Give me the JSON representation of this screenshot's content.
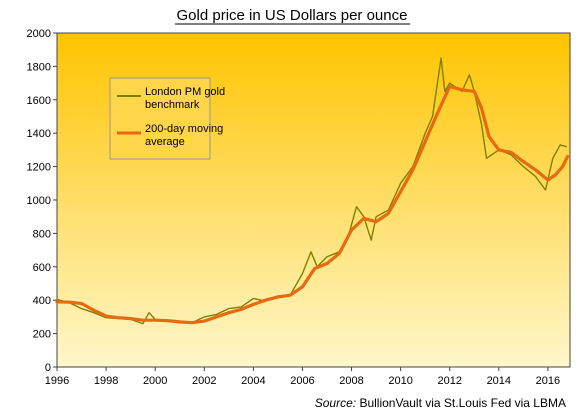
{
  "chart_data": {
    "type": "line",
    "title": "Gold price in US Dollars per ounce",
    "xlabel": "",
    "ylabel": "",
    "xlim": [
      1996,
      2016.9
    ],
    "ylim": [
      0,
      2000
    ],
    "x_ticks": [
      "1996",
      "1998",
      "2000",
      "2002",
      "2004",
      "2006",
      "2008",
      "2010",
      "2012",
      "2014",
      "2016"
    ],
    "y_ticks": [
      "0",
      "200",
      "400",
      "600",
      "800",
      "1000",
      "1200",
      "1400",
      "1600",
      "1800",
      "2000"
    ],
    "grid": false,
    "legend_position": "top-left",
    "source_label": "Source:",
    "source_text": "BullionVault via St.Louis Fed via LBMA",
    "background_gradient": [
      "#ffc400",
      "#fff7cc"
    ],
    "series": [
      {
        "name": "London PM gold benchmark",
        "color": "#808000",
        "x": [
          1996.0,
          1996.5,
          1997.0,
          1997.5,
          1998.0,
          1998.5,
          1999.0,
          1999.5,
          1999.75,
          2000.0,
          2000.5,
          2001.0,
          2001.5,
          2002.0,
          2002.5,
          2003.0,
          2003.5,
          2004.0,
          2004.5,
          2005.0,
          2005.5,
          2006.0,
          2006.35,
          2006.6,
          2007.0,
          2007.5,
          2007.9,
          2008.2,
          2008.5,
          2008.8,
          2009.0,
          2009.5,
          2010.0,
          2010.5,
          2011.0,
          2011.3,
          2011.65,
          2011.8,
          2012.0,
          2012.5,
          2012.8,
          2013.0,
          2013.3,
          2013.5,
          2014.0,
          2014.5,
          2015.0,
          2015.5,
          2015.9,
          2016.2,
          2016.5,
          2016.75
        ],
        "y": [
          405,
          385,
          350,
          325,
          295,
          290,
          285,
          260,
          325,
          285,
          275,
          265,
          265,
          300,
          315,
          350,
          360,
          410,
          395,
          425,
          430,
          560,
          690,
          600,
          660,
          690,
          800,
          960,
          900,
          760,
          900,
          940,
          1100,
          1200,
          1400,
          1500,
          1850,
          1650,
          1700,
          1650,
          1750,
          1650,
          1450,
          1250,
          1300,
          1270,
          1200,
          1140,
          1060,
          1250,
          1330,
          1320
        ]
      },
      {
        "name": "200-day moving average",
        "color": "#e86a10",
        "x": [
          1996.0,
          1996.5,
          1997.0,
          1997.5,
          1998.0,
          1998.5,
          1999.0,
          1999.5,
          2000.0,
          2000.5,
          2001.0,
          2001.5,
          2002.0,
          2002.5,
          2003.0,
          2003.5,
          2004.0,
          2004.5,
          2005.0,
          2005.5,
          2006.0,
          2006.5,
          2007.0,
          2007.5,
          2008.0,
          2008.5,
          2009.0,
          2009.5,
          2010.0,
          2010.5,
          2011.0,
          2011.5,
          2012.0,
          2012.5,
          2013.0,
          2013.3,
          2013.6,
          2014.0,
          2014.5,
          2015.0,
          2015.5,
          2016.0,
          2016.3,
          2016.6,
          2016.8
        ],
        "y": [
          390,
          388,
          380,
          340,
          305,
          295,
          290,
          280,
          280,
          278,
          270,
          265,
          275,
          300,
          325,
          345,
          375,
          400,
          420,
          430,
          480,
          590,
          620,
          680,
          820,
          890,
          870,
          920,
          1050,
          1180,
          1350,
          1520,
          1680,
          1660,
          1650,
          1550,
          1380,
          1300,
          1285,
          1230,
          1180,
          1120,
          1150,
          1200,
          1260
        ]
      }
    ]
  }
}
